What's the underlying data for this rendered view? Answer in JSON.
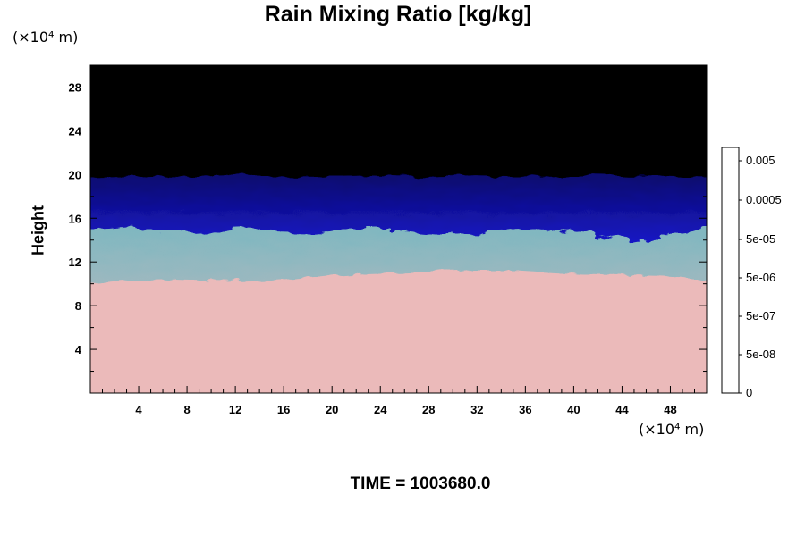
{
  "chart_data": {
    "type": "heatmap",
    "title": "Rain Mixing Ratio [kg/kg]",
    "xlabel": "",
    "ylabel": "Height",
    "x_unit": "(×10⁴ m)",
    "y_unit": "(×10⁴ m)",
    "xlim": [
      0,
      51
    ],
    "ylim": [
      0,
      30
    ],
    "x_ticks": [
      4,
      8,
      12,
      16,
      20,
      24,
      28,
      32,
      36,
      40,
      44,
      48
    ],
    "y_ticks": [
      4,
      8,
      12,
      16,
      20,
      24,
      28
    ],
    "grid": false,
    "layers": [
      {
        "region": "pink lower layer",
        "top": [
          10.0,
          10.3,
          10.4,
          10.3,
          10.2,
          10.3,
          10.6,
          10.9,
          11.0,
          11.1,
          11.2,
          11.2,
          11.0,
          10.9,
          10.8,
          10.7,
          10.4
        ],
        "color": "#ebbaba"
      },
      {
        "region": "grey/cyan turbulent layer",
        "top": [
          15.0,
          15.2,
          14.6,
          14.8,
          15.0,
          14.9,
          14.8,
          15.0,
          15.0,
          14.7,
          14.6,
          14.9,
          15.0,
          14.6,
          14.0,
          14.4,
          15.0
        ],
        "color": "#a9b8bd"
      },
      {
        "region": "blue upper layer",
        "top": [
          19.7,
          19.8,
          19.9,
          19.8,
          19.9,
          19.8,
          19.8,
          19.9,
          19.8,
          19.8,
          19.9,
          19.8,
          19.8,
          19.9,
          19.8,
          19.8,
          19.7
        ],
        "color": "#1a1ad6"
      }
    ],
    "colorbar": {
      "labels": [
        "0.005",
        "0.0005",
        "5e-05",
        "5e-06",
        "5e-07",
        "5e-08",
        "0"
      ],
      "levels": 16
    },
    "background_color": "#000000"
  },
  "time_label": "TIME = 1003680.0"
}
